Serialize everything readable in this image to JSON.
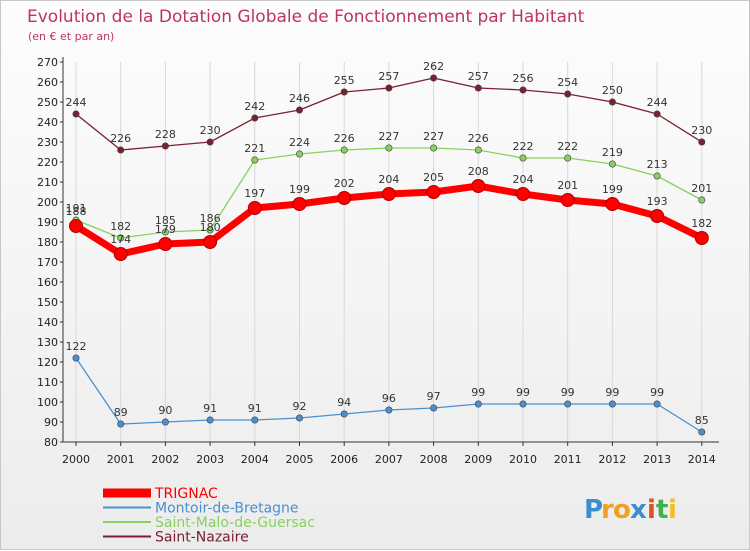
{
  "chart_data": {
    "type": "line",
    "title": "Evolution de la Dotation Globale de Fonctionnement par Habitant",
    "subtitle": "(en € et par an)",
    "xlabel": "",
    "ylabel": "",
    "ylim": [
      80,
      270
    ],
    "yticks": [
      80,
      90,
      100,
      110,
      120,
      130,
      140,
      150,
      160,
      170,
      180,
      190,
      200,
      210,
      220,
      230,
      240,
      250,
      260,
      270
    ],
    "grid": "vertical",
    "legend_position": "bottom-left",
    "categories": [
      "2000",
      "2001",
      "2002",
      "2003",
      "2004",
      "2005",
      "2006",
      "2007",
      "2008",
      "2009",
      "2010",
      "2011",
      "2012",
      "2013",
      "2014"
    ],
    "series": [
      {
        "name": "TRIGNAC",
        "color": "#ff0000",
        "values": [
          188,
          174,
          179,
          180,
          197,
          199,
          202,
          204,
          205,
          208,
          204,
          201,
          199,
          193,
          182
        ]
      },
      {
        "name": "Montoir-de-Bretagne",
        "color": "#4a90d0",
        "values": [
          122,
          89,
          90,
          91,
          91,
          92,
          94,
          96,
          97,
          99,
          99,
          99,
          99,
          99,
          85
        ]
      },
      {
        "name": "Saint-Malo-de-Guersac",
        "color": "#88d060",
        "values": [
          191,
          182,
          185,
          186,
          221,
          224,
          226,
          227,
          227,
          226,
          222,
          222,
          219,
          213,
          201
        ]
      },
      {
        "name": "Saint-Nazaire",
        "color": "#7a2030",
        "values": [
          244,
          226,
          228,
          230,
          242,
          246,
          255,
          257,
          262,
          257,
          256,
          254,
          250,
          244,
          230
        ]
      }
    ]
  },
  "logo": {
    "letters": [
      "P",
      "r",
      "o",
      "x",
      "i",
      "t",
      "i"
    ],
    "colors": [
      "#3a8fd0",
      "#f0a020",
      "#f0a020",
      "#3a8fd0",
      "#e05020",
      "#40b050",
      "#f0c020"
    ]
  }
}
